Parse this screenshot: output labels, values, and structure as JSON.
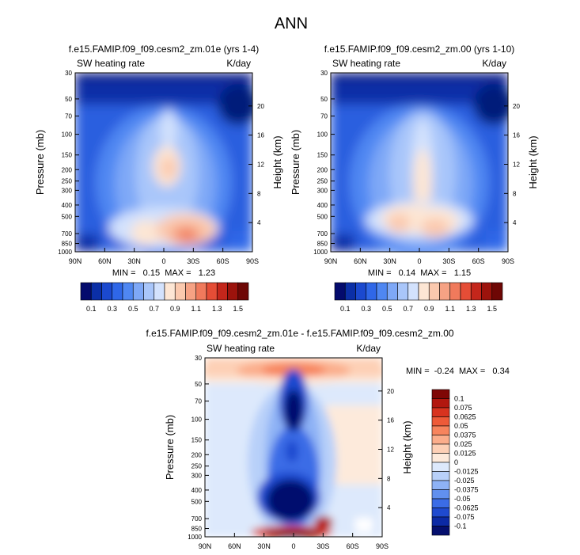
{
  "figure": {
    "title": "ANN"
  },
  "chart_data": [
    {
      "type": "heatmap",
      "id": "panel1",
      "title": "f.e15.FAMIP.f09_f09.cesm2_zm.01e (yrs 1-4)",
      "left_label": "SW heating rate",
      "right_label": "K/day",
      "ylabel": "Pressure (mb)",
      "y2label": "Height (km)",
      "x_ticks": [
        "90N",
        "60N",
        "30N",
        "0",
        "30S",
        "60S",
        "90S"
      ],
      "y_ticks": [
        "30",
        "50",
        "70",
        "100",
        "150",
        "200",
        "250",
        "300",
        "400",
        "500",
        "700",
        "850",
        "1000"
      ],
      "y2_ticks": [
        "20",
        "16",
        "12",
        "8",
        "4"
      ],
      "stats_text": "MIN =   0.15  MAX =   1.23",
      "min": 0.15,
      "max": 1.23
    },
    {
      "type": "heatmap",
      "id": "panel2",
      "title": "f.e15.FAMIP.f09_f09.cesm2_zm.00 (yrs 1-10)",
      "left_label": "SW heating rate",
      "right_label": "K/day",
      "ylabel": "Pressure (mb)",
      "y2label": "Height (km)",
      "x_ticks": [
        "90N",
        "60N",
        "30N",
        "0",
        "30S",
        "60S",
        "90S"
      ],
      "y_ticks": [
        "30",
        "50",
        "70",
        "100",
        "150",
        "200",
        "250",
        "300",
        "400",
        "500",
        "700",
        "850",
        "1000"
      ],
      "y2_ticks": [
        "20",
        "16",
        "12",
        "8",
        "4"
      ],
      "stats_text": "MIN =   0.14  MAX =   1.15",
      "min": 0.14,
      "max": 1.15
    },
    {
      "type": "heatmap",
      "id": "panel3",
      "title": "f.e15.FAMIP.f09_f09.cesm2_zm.01e - f.e15.FAMIP.f09_f09.cesm2_zm.00",
      "left_label": "SW heating rate",
      "right_label": "K/day",
      "ylabel": "Pressure (mb)",
      "y2label": "Height (km)",
      "x_ticks": [
        "90N",
        "60N",
        "30N",
        "0",
        "30S",
        "60S",
        "90S"
      ],
      "y_ticks": [
        "30",
        "50",
        "70",
        "100",
        "150",
        "200",
        "250",
        "300",
        "400",
        "500",
        "700",
        "850",
        "1000"
      ],
      "y2_ticks": [
        "20",
        "16",
        "12",
        "8",
        "4"
      ],
      "stats_text": "MIN =  -0.24  MAX =   0.34",
      "min": -0.24,
      "max": 0.34
    }
  ],
  "colorbars": {
    "absolute": {
      "labels": [
        "0.1",
        "0.3",
        "0.5",
        "0.7",
        "0.9",
        "1.1",
        "1.3",
        "1.5"
      ],
      "colors": [
        "#040b6d",
        "#0b2fa7",
        "#1b49cf",
        "#2f67e8",
        "#4f87f2",
        "#7ea8f7",
        "#a9c6fa",
        "#d3e2fd",
        "#fde6d4",
        "#fbc9ae",
        "#f6a284",
        "#f07a5c",
        "#e54d36",
        "#c4261b",
        "#9c130c",
        "#6e0705"
      ]
    },
    "difference": {
      "labels": [
        "0.1",
        "0.075",
        "0.0625",
        "0.05",
        "0.0375",
        "0.025",
        "0.0125",
        "0",
        "-0.0125",
        "-0.025",
        "-0.0375",
        "-0.05",
        "-0.0625",
        "-0.075",
        "-0.1"
      ],
      "colors": [
        "#7f0706",
        "#b2170f",
        "#d8331f",
        "#ee5a38",
        "#f7845d",
        "#fbad8b",
        "#fdd0b6",
        "#fdeadb",
        "#dde9fc",
        "#b8d0f9",
        "#8eb2f5",
        "#6190ef",
        "#3b6ce6",
        "#1f4acf",
        "#0c2aa5",
        "#050f6e"
      ]
    }
  }
}
